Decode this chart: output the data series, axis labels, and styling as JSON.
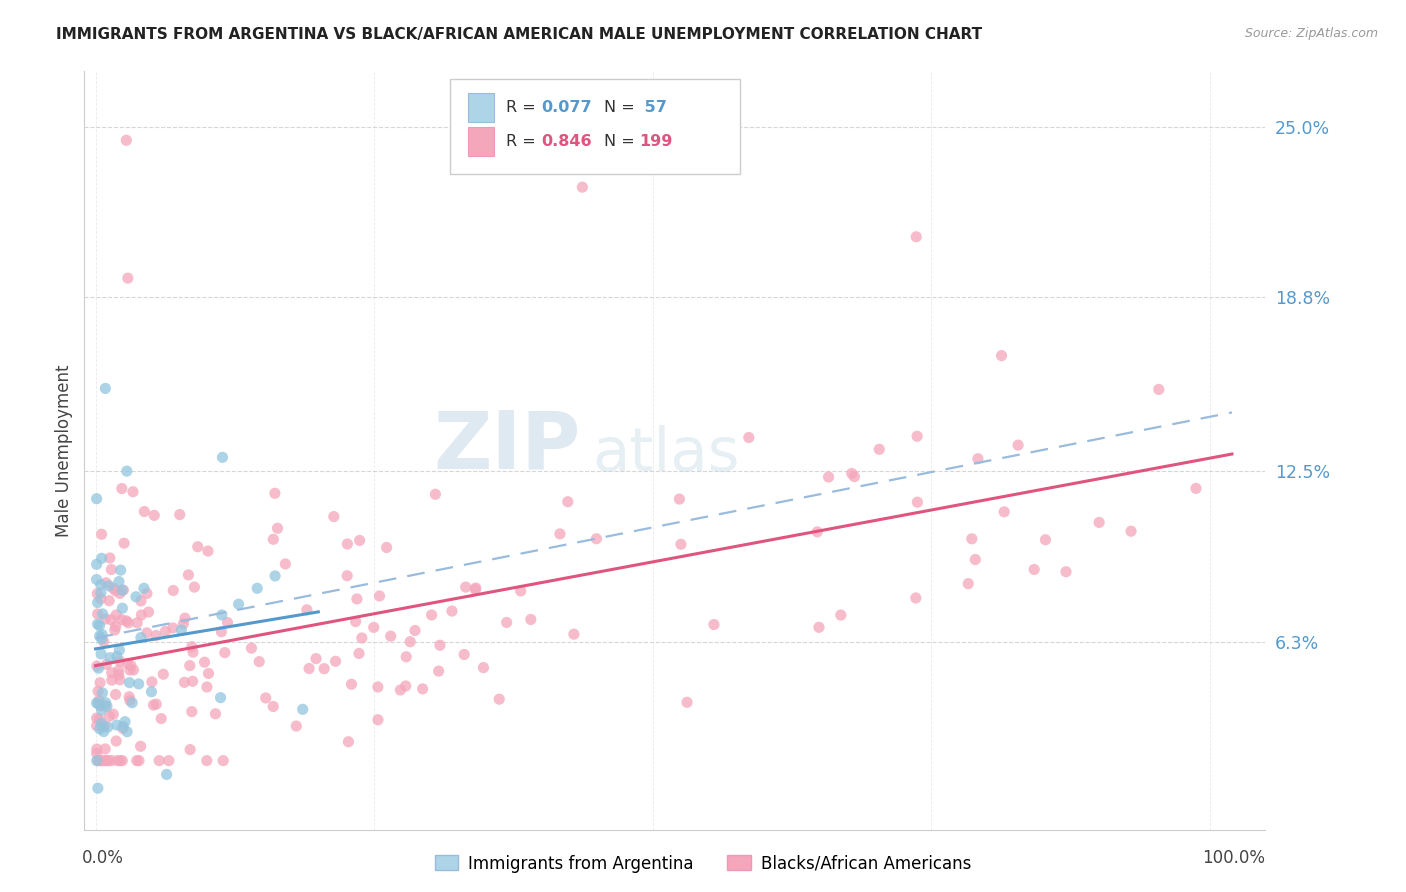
{
  "title": "IMMIGRANTS FROM ARGENTINA VS BLACK/AFRICAN AMERICAN MALE UNEMPLOYMENT CORRELATION CHART",
  "source": "Source: ZipAtlas.com",
  "ylabel": "Male Unemployment",
  "ytick_labels": [
    "6.3%",
    "12.5%",
    "18.8%",
    "25.0%"
  ],
  "ytick_values": [
    0.063,
    0.125,
    0.188,
    0.25
  ],
  "ymin": -0.005,
  "ymax": 0.27,
  "xmin": -0.01,
  "xmax": 1.05,
  "watermark_zip": "ZIP",
  "watermark_atlas": "atlas",
  "legend_label1": "Immigrants from Argentina",
  "legend_label2": "Blacks/African Americans",
  "color_blue": "#92c5de",
  "color_blue_fill": "#aed4e8",
  "color_pink": "#f4a6bb",
  "color_pink_fill": "#f4a6bb",
  "color_blue_line": "#5599cc",
  "color_pink_line": "#e05580",
  "color_dashed_line": "#99bbdd",
  "title_color": "#222222",
  "ytick_color": "#5599cc",
  "source_color": "#999999"
}
